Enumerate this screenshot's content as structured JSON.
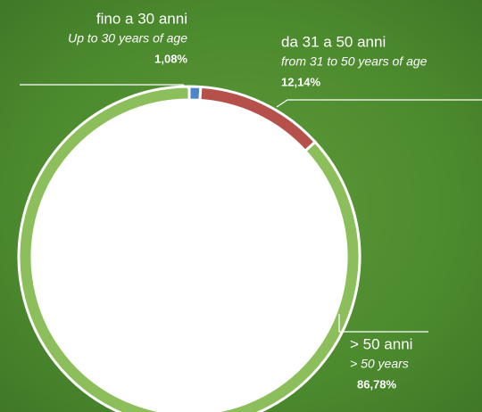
{
  "chart_data": {
    "type": "donut",
    "categories": [
      "fino a 30 anni",
      "da 31 a 50 anni",
      "> 50 anni"
    ],
    "subtitles": [
      "Up to 30 years of age",
      "from 31 to 50 years of age",
      "> 50 years"
    ],
    "values": [
      1.08,
      12.14,
      86.78
    ],
    "value_labels": [
      "1,08%",
      "12,14%",
      "86,78%"
    ],
    "colors": [
      "#4a86c8",
      "#b5514a",
      "#8cbf5c"
    ]
  }
}
